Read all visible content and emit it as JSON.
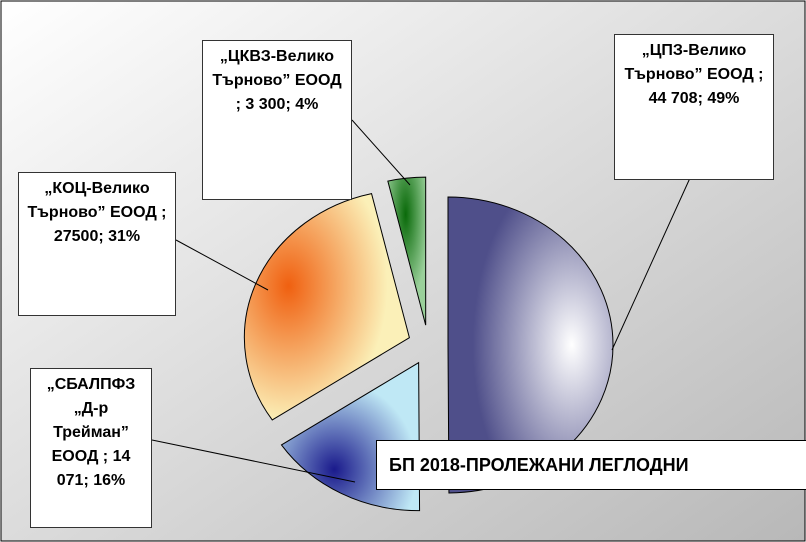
{
  "chart_data": {
    "type": "pie",
    "title": "БП 2018-ПРОЛЕЖАНИ ЛЕГЛОДНИ",
    "values": [
      44708,
      14071,
      27500,
      3300
    ],
    "value_labels": [
      "„ЦПЗ-Велико Търново” ЕООД ; 44 708; 49%",
      "„СБАЛПФЗ „Д-р Трейман” ЕООД ; 14 071; 16%",
      "„КОЦ-Велико Търново” ЕООД ; 27500; 31%",
      "„ЦКВЗ-Велико Търново” ЕООД ; 3 300; 4%"
    ],
    "colors": [
      "#4f4f8a",
      "#1a1a8c",
      "#f06010",
      "#0a6a0a"
    ]
  }
}
